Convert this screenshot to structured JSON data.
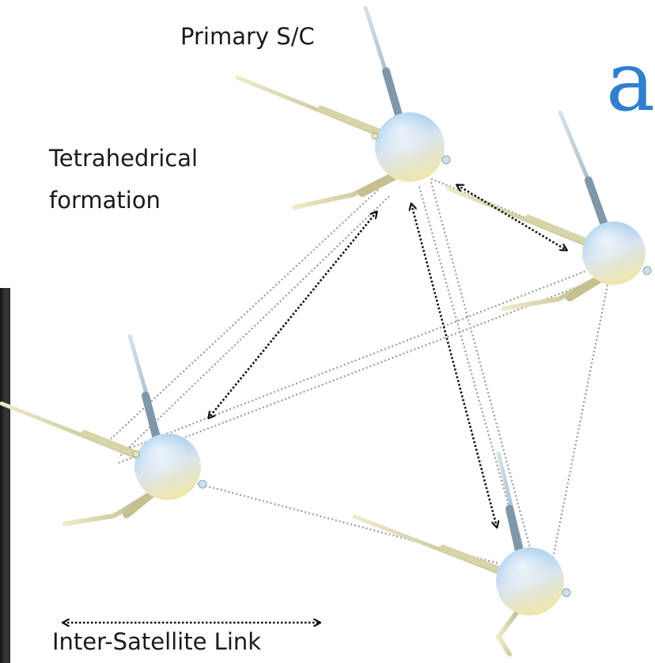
{
  "labels": {
    "primary_sc": "Primary S/C",
    "formation_line1": "Tetrahedrical",
    "formation_line2": "formation",
    "link_legend": "Inter-Satellite Link",
    "partial_title_letter": "a"
  },
  "colors": {
    "background": "#ffffff",
    "text": "#1a1a1a",
    "title_blue": "#2f7fd1",
    "inter_sat_link": "#111111",
    "formation_edge": "#9a9a9a",
    "sphere_top": "#8fc3ee",
    "sphere_bottom": "#f1e6a6",
    "boom": "#c8c79a",
    "boom_blue": "#9fb8c9",
    "left_strip": "#222222"
  },
  "spacecraft": [
    {
      "id": "primary",
      "role": "Primary S/C"
    },
    {
      "id": "right"
    },
    {
      "id": "left"
    },
    {
      "id": "bottom"
    }
  ],
  "formation_edges": [
    {
      "from": "primary",
      "to": "left"
    },
    {
      "from": "primary",
      "to": "right"
    },
    {
      "from": "primary",
      "to": "bottom"
    },
    {
      "from": "left",
      "to": "right"
    },
    {
      "from": "left",
      "to": "bottom"
    },
    {
      "from": "right",
      "to": "bottom"
    }
  ],
  "inter_satellite_links": [
    {
      "from": "primary",
      "to": "right"
    },
    {
      "from": "primary",
      "to": "left"
    },
    {
      "from": "primary",
      "to": "bottom"
    }
  ]
}
